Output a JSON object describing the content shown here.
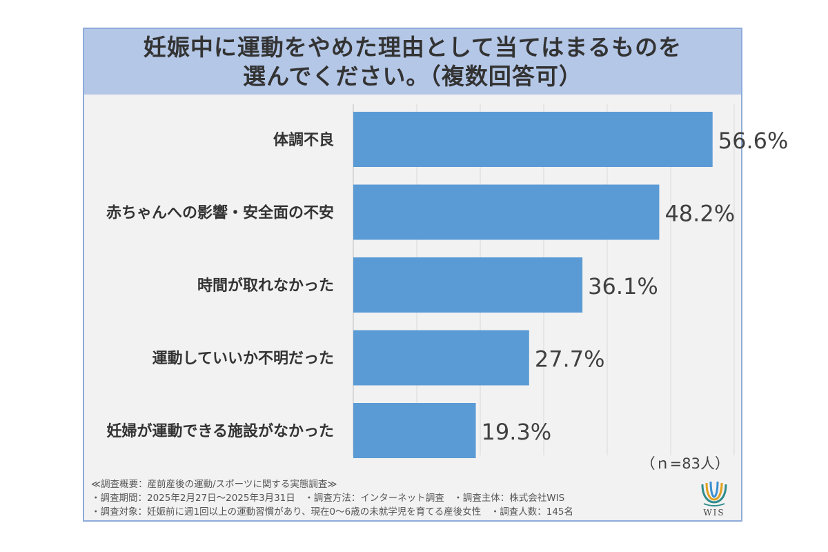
{
  "title_lines": [
    "妊娠中に運動をやめた理由として当てはまるものを",
    "選んでください。（複数回答可）"
  ],
  "sample_size_label": "（ｎ=83人）",
  "chart_data": {
    "type": "bar",
    "orientation": "horizontal",
    "title": "妊娠中に運動をやめた理由として当てはまるものを選んでください。（複数回答可）",
    "categories": [
      "体調不良",
      "赤ちゃんへの影響・安全面の不安",
      "時間が取れなかった",
      "運動していいか不明だった",
      "妊婦が運動できる施設がなかった"
    ],
    "values": [
      56.6,
      48.2,
      36.1,
      27.7,
      19.3
    ],
    "value_labels": [
      "56.6%",
      "48.2%",
      "36.1%",
      "27.7%",
      "19.3%"
    ],
    "unit": "%",
    "xlim": [
      0,
      60
    ],
    "grid": true,
    "bar_color": "#5b9bd5"
  },
  "footnotes": [
    "≪調査概要：産前産後の運動/スポーツに関する実態調査≫",
    "・調査期間：2025年2月27日～2025年3月31日　・調査方法：インターネット調査　・調査主体：株式会社WIS",
    "・調査対象：妊娠前に週1回以上の運動習慣があり、現在0～6歳の未就学児を育てる産後女性　・調査人数：145名"
  ],
  "logo_text": "WIS",
  "colors": {
    "frame": "#8eaadb",
    "title_band": "#b4c7e7",
    "plot_bg": "#f2f2f2",
    "bar": "#5b9bd5"
  }
}
